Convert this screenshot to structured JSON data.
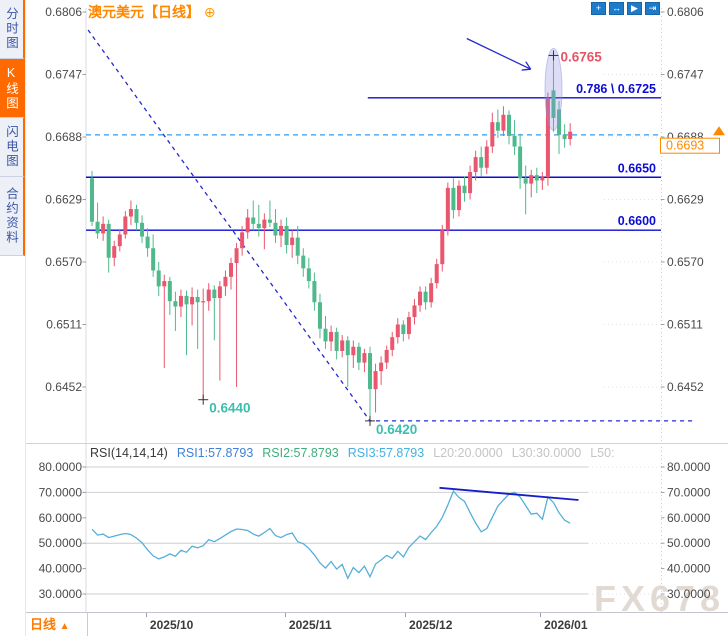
{
  "app": {
    "watermark": "FX678"
  },
  "sidebar": {
    "items": [
      {
        "label": "分时图",
        "selected": false
      },
      {
        "label": "K线图",
        "selected": true
      },
      {
        "label": "闪电图",
        "selected": false
      },
      {
        "label": "合约资料",
        "selected": false
      }
    ]
  },
  "header": {
    "symbol": "澳元美元",
    "period": "【日线】",
    "settings_icon": "⊕",
    "toolbar_icons": [
      {
        "name": "crosshair-icon",
        "glyph": "+"
      },
      {
        "name": "fit-width-icon",
        "glyph": "↔"
      },
      {
        "name": "zoom-chart-icon",
        "glyph": "▶"
      },
      {
        "name": "scroll-right-icon",
        "glyph": "⇥"
      }
    ]
  },
  "bottom_bar": {
    "period_label": "日线",
    "arrow": "▲"
  },
  "chart_data": {
    "type": "candlestick+line",
    "title": "澳元美元 日线 (AUD/USD Daily)",
    "main": {
      "type": "candlestick",
      "unit": 0.0001,
      "up_color": "#e9566d",
      "down_color": "#4fb98c",
      "y_ticks": [
        "0.6806",
        "0.6747",
        "0.6688",
        "0.6629",
        "0.6570",
        "0.6511",
        "0.6452"
      ],
      "ylim": [
        0.6405,
        0.6818
      ],
      "x_ticks": [
        {
          "label": "2025/10",
          "i": 9.7
        },
        {
          "label": "2025/11",
          "i": 34.7
        },
        {
          "label": "2025/12",
          "i": 56.3
        },
        {
          "label": "2026/01",
          "i": 80.6
        }
      ],
      "levels": [
        {
          "label": "0.786 \\ 0.6725",
          "price": 0.6725,
          "from_i": 49.6,
          "color": "#0b0bd6"
        },
        {
          "label": "0.6650",
          "price": 0.665,
          "from_i": null,
          "color": "#0b0bd6"
        },
        {
          "label": "0.6600",
          "price": 0.66,
          "from_i": null,
          "color": "#0b0bd6"
        }
      ],
      "dashed_line": {
        "price": 0.669,
        "color": "#2f9bf5"
      },
      "current_price": {
        "label": "0.6693",
        "price": 0.6693,
        "color": "#ff8800"
      },
      "annotations": {
        "high_label": {
          "text": "0.6765",
          "i": 83,
          "price": 0.6765,
          "color": "#e25565"
        },
        "low_labels": [
          {
            "text": "0.6440",
            "i": 20,
            "price": 0.644
          },
          {
            "text": "0.6420",
            "i": 50,
            "price": 0.642
          }
        ],
        "low_label_color": "#3bbfae",
        "crosses": [
          {
            "i": 83,
            "price": 0.6765
          },
          {
            "i": 20,
            "price": 0.644
          },
          {
            "i": 50,
            "price": 0.642
          }
        ],
        "trendline": {
          "points": [
            [
              -0.7,
              0.6789
            ],
            [
              50,
              0.642
            ],
            [
              108.5,
              0.642
            ]
          ],
          "color": "#2328ce"
        },
        "arrow": {
          "from": [
            67.4,
            0.6781
          ],
          "to": [
            78.9,
            0.6752
          ],
          "color": "#2328ce"
        },
        "highlight_ellipse": {
          "i": 83,
          "price": 0.6733,
          "color": "#8f8fe0"
        }
      },
      "candles": [
        [
          6649,
          6656,
          6604,
          6608
        ],
        [
          6608,
          6626,
          6592,
          6597
        ],
        [
          6597,
          6613,
          6590,
          6606
        ],
        [
          6606,
          6610,
          6560,
          6574
        ],
        [
          6574,
          6590,
          6566,
          6585
        ],
        [
          6585,
          6601,
          6580,
          6596
        ],
        [
          6596,
          6618,
          6592,
          6613
        ],
        [
          6613,
          6628,
          6605,
          6620
        ],
        [
          6620,
          6624,
          6600,
          6607
        ],
        [
          6607,
          6614,
          6588,
          6594
        ],
        [
          6594,
          6602,
          6575,
          6583
        ],
        [
          6583,
          6596,
          6556,
          6562
        ],
        [
          6562,
          6570,
          6538,
          6547
        ],
        [
          6547,
          6558,
          6470,
          6552
        ],
        [
          6552,
          6556,
          6520,
          6533
        ],
        [
          6533,
          6542,
          6505,
          6528
        ],
        [
          6528,
          6544,
          6518,
          6538
        ],
        [
          6538,
          6543,
          6482,
          6530
        ],
        [
          6530,
          6546,
          6510,
          6537
        ],
        [
          6537,
          6544,
          6488,
          6532
        ],
        [
          6532,
          6545,
          6440,
          6533
        ],
        [
          6533,
          6550,
          6524,
          6544
        ],
        [
          6544,
          6548,
          6496,
          6536
        ],
        [
          6536,
          6552,
          6458,
          6547
        ],
        [
          6547,
          6562,
          6538,
          6556
        ],
        [
          6556,
          6574,
          6544,
          6569
        ],
        [
          6569,
          6588,
          6452,
          6583
        ],
        [
          6583,
          6604,
          6576,
          6598
        ],
        [
          6598,
          6620,
          6592,
          6612
        ],
        [
          6612,
          6628,
          6600,
          6606
        ],
        [
          6606,
          6624,
          6594,
          6602
        ],
        [
          6602,
          6616,
          6582,
          6610
        ],
        [
          6610,
          6628,
          6603,
          6607
        ],
        [
          6607,
          6620,
          6588,
          6595
        ],
        [
          6595,
          6610,
          6584,
          6604
        ],
        [
          6604,
          6612,
          6578,
          6586
        ],
        [
          6586,
          6600,
          6574,
          6593
        ],
        [
          6593,
          6604,
          6568,
          6576
        ],
        [
          6576,
          6583,
          6556,
          6564
        ],
        [
          6564,
          6574,
          6545,
          6552
        ],
        [
          6552,
          6560,
          6524,
          6532
        ],
        [
          6532,
          6540,
          6498,
          6507
        ],
        [
          6507,
          6519,
          6488,
          6495
        ],
        [
          6495,
          6510,
          6486,
          6504
        ],
        [
          6504,
          6508,
          6478,
          6486
        ],
        [
          6486,
          6501,
          6480,
          6496
        ],
        [
          6496,
          6500,
          6452,
          6482
        ],
        [
          6482,
          6496,
          6470,
          6490
        ],
        [
          6490,
          6494,
          6468,
          6475
        ],
        [
          6475,
          6488,
          6466,
          6484
        ],
        [
          6484,
          6490,
          6420,
          6450
        ],
        [
          6450,
          6474,
          6428,
          6467
        ],
        [
          6467,
          6481,
          6454,
          6475
        ],
        [
          6475,
          6491,
          6469,
          6487
        ],
        [
          6487,
          6504,
          6481,
          6499
        ],
        [
          6499,
          6517,
          6493,
          6511
        ],
        [
          6511,
          6515,
          6495,
          6502
        ],
        [
          6502,
          6523,
          6497,
          6518
        ],
        [
          6518,
          6535,
          6511,
          6529
        ],
        [
          6529,
          6547,
          6523,
          6542
        ],
        [
          6542,
          6547,
          6525,
          6532
        ],
        [
          6532,
          6555,
          6527,
          6550
        ],
        [
          6550,
          6573,
          6545,
          6568
        ],
        [
          6568,
          6605,
          6561,
          6600
        ],
        [
          6600,
          6645,
          6595,
          6640
        ],
        [
          6640,
          6649,
          6611,
          6619
        ],
        [
          6619,
          6647,
          6613,
          6642
        ],
        [
          6642,
          6651,
          6627,
          6635
        ],
        [
          6635,
          6661,
          6629,
          6655
        ],
        [
          6655,
          6675,
          6647,
          6669
        ],
        [
          6669,
          6679,
          6651,
          6659
        ],
        [
          6659,
          6685,
          6653,
          6679
        ],
        [
          6679,
          6711,
          6673,
          6702
        ],
        [
          6702,
          6714,
          6687,
          6694
        ],
        [
          6694,
          6717,
          6689,
          6709
        ],
        [
          6709,
          6713,
          6681,
          6689
        ],
        [
          6689,
          6704,
          6671,
          6679
        ],
        [
          6679,
          6691,
          6639,
          6649
        ],
        [
          6649,
          6661,
          6615,
          6644
        ],
        [
          6644,
          6657,
          6631,
          6652
        ],
        [
          6652,
          6659,
          6635,
          6647
        ],
        [
          6647,
          6655,
          6638,
          6650
        ],
        [
          6650,
          6730,
          6642,
          6724
        ],
        [
          6732,
          6765,
          6693,
          6706
        ],
        [
          6714,
          6722,
          6672,
          6690
        ],
        [
          6690,
          6700,
          6678,
          6686
        ],
        [
          6686,
          6701,
          6680,
          6693
        ]
      ]
    },
    "rsi": {
      "title": "RSI(14,14,14)",
      "settings_icon": "✳",
      "legend": [
        {
          "label": "RSI1:57.8793",
          "color": "#3e7fd8"
        },
        {
          "label": "RSI2:57.8793",
          "color": "#3fae7c"
        },
        {
          "label": "RSI3:57.8793",
          "color": "#44afe0"
        },
        {
          "label": "L20:20.0000",
          "color": "#c4c4c4"
        },
        {
          "label": "L30:30.0000",
          "color": "#c4c4c4"
        },
        {
          "label": "L50:",
          "color": "#c4c4c4"
        }
      ],
      "line_color": "#56afd8",
      "y_ticks": [
        "80.0000",
        "70.0000",
        "60.0000",
        "50.0000",
        "40.0000",
        "30.0000"
      ],
      "tick_values": [
        80,
        70,
        60,
        50,
        40,
        30
      ],
      "gridlines": [
        80,
        70,
        50,
        30
      ],
      "ylim": [
        24,
        89
      ],
      "trendline": {
        "from": [
          62.5,
          71.8
        ],
        "to": [
          87.5,
          67.0
        ],
        "color": "#151fc8"
      },
      "values": [
        55.5,
        53.2,
        53.6,
        52.2,
        52.8,
        53.4,
        53.8,
        53.4,
        52.0,
        50.2,
        47.4,
        45.0,
        43.8,
        44.6,
        45.8,
        44.9,
        47.2,
        46.4,
        48.8,
        48.2,
        49.0,
        51.4,
        50.6,
        51.8,
        53.2,
        54.6,
        55.6,
        55.4,
        55.0,
        53.6,
        52.8,
        54.2,
        55.8,
        53.0,
        52.2,
        53.4,
        54.0,
        50.6,
        49.8,
        48.0,
        45.4,
        42.2,
        40.2,
        42.8,
        39.8,
        41.6,
        36.2,
        40.4,
        38.4,
        41.0,
        36.8,
        41.8,
        43.4,
        45.2,
        44.0,
        46.8,
        44.6,
        48.4,
        50.6,
        52.8,
        51.4,
        54.2,
        56.6,
        60.2,
        65.0,
        70.5,
        68.0,
        66.5,
        62.0,
        58.0,
        54.5,
        55.8,
        60.2,
        64.6,
        67.0,
        69.3,
        70.0,
        68.2,
        64.8,
        61.4,
        61.8,
        59.4,
        68.2,
        66.0,
        62.0,
        59.0,
        57.88
      ]
    }
  }
}
